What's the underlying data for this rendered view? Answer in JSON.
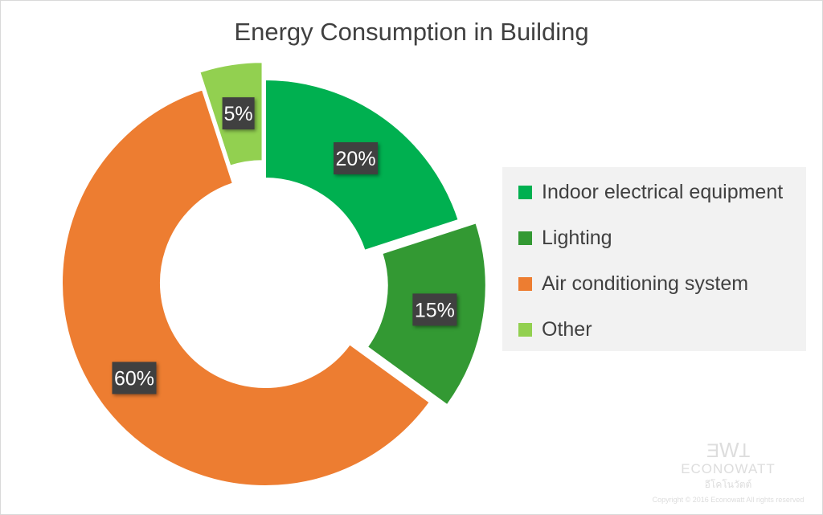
{
  "chart_data": {
    "type": "pie",
    "subtype": "donut",
    "title": "Energy Consumption in Building",
    "categories": [
      "Indoor electrical equipment",
      "Lighting",
      "Air conditioning system",
      "Other"
    ],
    "values": [
      20,
      15,
      60,
      5
    ],
    "data_labels": [
      "20%",
      "15%",
      "60%",
      "5%"
    ],
    "colors": [
      "#00b050",
      "#339933",
      "#ed7d31",
      "#92d050"
    ],
    "exploded": [
      false,
      true,
      false,
      true
    ],
    "legend_position": "right"
  },
  "watermark": {
    "brand": "ECONOWATT",
    "thai": "อีโคโนวัตต์",
    "copyright": "Copyright © 2016 Econowatt All rights reserved"
  }
}
